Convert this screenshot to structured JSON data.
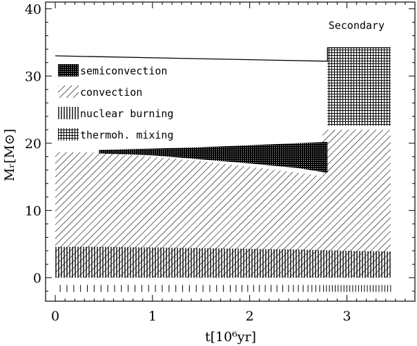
{
  "chart_data": {
    "type": "area",
    "title": "",
    "annotation": "Secondary",
    "xlabel": "t[10⁶yr]",
    "ylabel": "Mᵣ[M⊙]",
    "xlim": [
      -0.1,
      3.7
    ],
    "ylim": [
      -3.5,
      41
    ],
    "x_ticks": [
      0,
      1,
      2,
      3
    ],
    "y_ticks": [
      0,
      10,
      20,
      30,
      40
    ],
    "legend": {
      "position": "upper-left",
      "entries": [
        {
          "name": "semiconvection",
          "pattern": "crosshatch-dense"
        },
        {
          "name": "convection",
          "pattern": "diagonal"
        },
        {
          "name": "nuclear burning",
          "pattern": "vertical"
        },
        {
          "name": "thermoh. mixing",
          "pattern": "crosshatch"
        }
      ]
    },
    "total_mass": {
      "x": [
        0,
        2.8,
        2.8,
        3.45
      ],
      "y": [
        33,
        32.2,
        34.2,
        34.2
      ]
    },
    "regions": [
      {
        "name": "convection",
        "part": "core",
        "upper": {
          "x": [
            0,
            0.45,
            1.0,
            1.5,
            2.0,
            2.4,
            2.7,
            2.75
          ],
          "y": [
            18.7,
            18.6,
            18.0,
            17.3,
            16.5,
            15.8,
            15.2,
            15.0
          ]
        },
        "lower": {
          "x": [
            0,
            2.75
          ],
          "y": [
            0,
            0
          ]
        }
      },
      {
        "name": "convection",
        "part": "secondary",
        "upper": {
          "x": [
            2.75,
            3.45
          ],
          "y": [
            22.0,
            22.0
          ]
        },
        "lower": {
          "x": [
            2.75,
            3.45
          ],
          "y": [
            0,
            0
          ]
        }
      },
      {
        "name": "semiconvection",
        "part": "shell",
        "upper": {
          "x": [
            0.45,
            1.0,
            1.5,
            2.0,
            2.5,
            2.8
          ],
          "y": [
            19.0,
            19.2,
            19.4,
            19.7,
            20.0,
            20.2
          ]
        },
        "lower": {
          "x": [
            0.45,
            1.0,
            1.5,
            2.0,
            2.5,
            2.8
          ],
          "y": [
            18.5,
            18.2,
            17.6,
            17.0,
            16.3,
            15.6
          ]
        }
      },
      {
        "name": "thermoh. mixing",
        "part": "envelope",
        "upper": {
          "x": [
            2.8,
            3.45
          ],
          "y": [
            34.2,
            34.2
          ]
        },
        "lower": {
          "x": [
            2.8,
            3.45
          ],
          "y": [
            22.6,
            22.6
          ]
        }
      },
      {
        "name": "nuclear burning",
        "part": "core",
        "upper": {
          "x": [
            0,
            0.5,
            1.0,
            1.5,
            2.0,
            2.5,
            3.0,
            3.45
          ],
          "y": [
            4.6,
            4.6,
            4.5,
            4.4,
            4.3,
            4.2,
            4.0,
            3.9
          ]
        },
        "lower": {
          "x": [
            0,
            3.45
          ],
          "y": [
            0,
            0
          ]
        }
      }
    ],
    "time_markers": [
      0.05,
      0.12,
      0.19,
      0.26,
      0.33,
      0.4,
      0.47,
      0.54,
      0.61,
      0.68,
      0.75,
      0.82,
      0.89,
      0.96,
      1.03,
      1.1,
      1.17,
      1.24,
      1.31,
      1.38,
      1.45,
      1.52,
      1.59,
      1.66,
      1.73,
      1.8,
      1.86,
      1.92,
      1.98,
      2.04,
      2.1,
      2.16,
      2.22,
      2.28,
      2.34,
      2.4,
      2.45,
      2.5,
      2.55,
      2.6,
      2.64,
      2.68,
      2.72,
      2.76,
      2.79,
      2.82,
      2.85,
      2.88,
      2.91,
      2.94,
      2.97,
      3.0,
      3.03,
      3.06,
      3.09,
      3.12,
      3.15,
      3.18,
      3.21,
      3.24,
      3.27,
      3.3,
      3.33,
      3.36,
      3.39,
      3.42,
      3.45
    ],
    "time_marker_y": -1.6
  }
}
